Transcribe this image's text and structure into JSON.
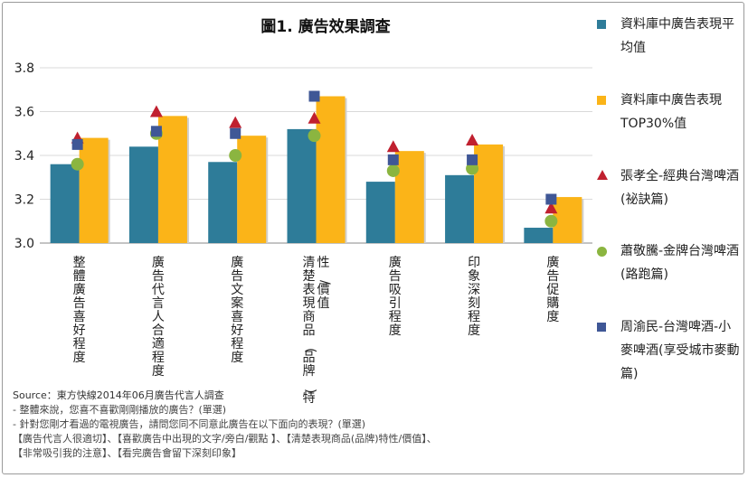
{
  "chart_data": {
    "type": "bar",
    "title": "圖1. 廣告效果調查",
    "categories": [
      "整體廣告喜好程度",
      "廣告代言人合適程度",
      "廣告文案喜好程度",
      "清楚表現商品(品牌)特性/價值",
      "廣告吸引程度",
      "印象深刻程度",
      "廣告促購度"
    ],
    "ylim": [
      3.0,
      3.8
    ],
    "yticks": [
      "3.0",
      "3.2",
      "3.4",
      "3.6",
      "3.8"
    ],
    "series": [
      {
        "name": "資料庫中廣告表現平均值",
        "type": "bar",
        "color": "#2e7c99",
        "values": [
          3.36,
          3.44,
          3.37,
          3.52,
          3.28,
          3.31,
          3.07
        ]
      },
      {
        "name": "資料庫中廣告表現TOP30%值",
        "type": "bar",
        "color": "#fbb418",
        "values": [
          3.48,
          3.58,
          3.49,
          3.67,
          3.42,
          3.45,
          3.21
        ]
      },
      {
        "name": "張孝全-經典台灣啤酒(祕訣篇)",
        "type": "triangle",
        "color": "#c0202f",
        "values": [
          3.48,
          3.6,
          3.55,
          3.57,
          3.44,
          3.47,
          3.16
        ]
      },
      {
        "name": "蕭敬騰-金牌台灣啤酒(路跑篇)",
        "type": "circle",
        "color": "#8bb540",
        "values": [
          3.36,
          3.5,
          3.4,
          3.49,
          3.33,
          3.34,
          3.1
        ]
      },
      {
        "name": "周渝民-台灣啤酒-小麥啤酒(享受城市麥動篇)",
        "type": "square",
        "color": "#3f5796",
        "values": [
          3.45,
          3.51,
          3.5,
          3.67,
          3.38,
          3.38,
          3.2
        ]
      }
    ],
    "legend": "right"
  },
  "legend": {
    "items": [
      "資料庫中廣告表現平均值",
      "資料庫中廣告表現TOP30%值",
      "張孝全-經典台灣啤酒(祕訣篇)",
      "蕭敬騰-金牌台灣啤酒(路跑篇)",
      "周渝民-台灣啤酒-小麥啤酒(享受城市麥動篇)"
    ]
  },
  "source": {
    "title": "Source：東方快線2014年06月廣告代言人調查",
    "line1": "- 整體來說，您喜不喜歡剛剛播放的廣告？(單選)",
    "line2": "- 針對您剛才看過的電視廣告，請問您同不同意此廣告在以下面向的表現？(單選)",
    "line3": "【廣告代言人很適切】、【喜歡廣告中出現的文字/旁白/觀點 】、【清楚表現商品(品牌)特性/價值】、",
    "line4": "【非常吸引我的注意】、【看完廣告會留下深刻印象】"
  }
}
